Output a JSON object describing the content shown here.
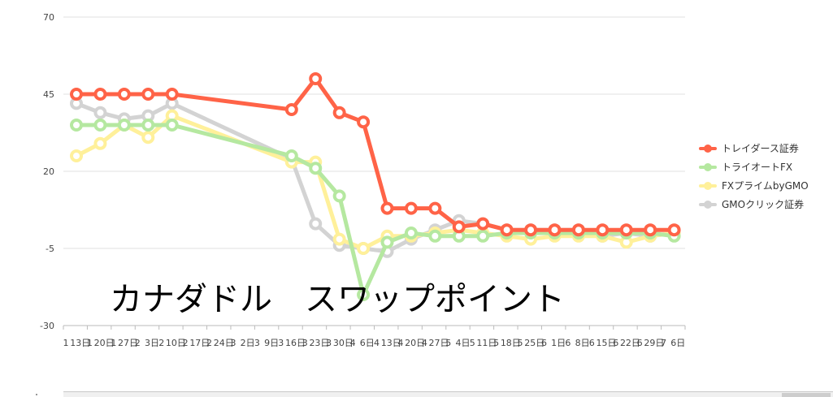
{
  "chart_data": {
    "type": "line",
    "title": "カナダドル　スワップポイント",
    "xlabel": "",
    "ylabel": "",
    "ylim": [
      -30,
      70
    ],
    "yticks": [
      70,
      45,
      20,
      -5,
      -30
    ],
    "grid": true,
    "legend_position": "right",
    "x": [
      "1月13日",
      "1月20日",
      "1月27日",
      "2月3日",
      "2月10日",
      "2月17日",
      "2月24日",
      "3月2日",
      "3月9日",
      "3月16日",
      "3月23日",
      "3月30日",
      "4月6日",
      "4月13日",
      "4月20日",
      "4月27日",
      "5月4日",
      "5月11日",
      "5月18日",
      "5月25日",
      "6月1日",
      "6月8日",
      "6月15日",
      "6月22日",
      "6月29日",
      "7月6日"
    ],
    "x_tick_labels": [
      "1",
      "13日",
      "1",
      "20日",
      "1",
      "27日",
      "2",
      "3日",
      "2",
      "10日",
      "2",
      "17日",
      "2",
      "24日",
      "3",
      "2日",
      "3",
      "9日",
      "3",
      "16日",
      "3",
      "23日",
      "3",
      "30日",
      "4",
      "6日",
      "4",
      "13日",
      "4",
      "20日",
      "4",
      "27日",
      "5",
      "4日",
      "5",
      "11日",
      "5",
      "18日",
      "5",
      "25日",
      "6",
      "1日",
      "6",
      "8日",
      "6",
      "15日",
      "6",
      "22日",
      "6",
      "29日",
      "7",
      "6日"
    ],
    "series": [
      {
        "name": "トレイダース証券",
        "color": "#ff6347",
        "values": [
          45,
          45,
          45,
          45,
          45,
          null,
          null,
          null,
          null,
          40,
          50,
          39,
          36,
          8,
          8,
          8,
          2,
          3,
          1,
          1,
          1,
          1,
          1,
          1,
          1,
          1
        ]
      },
      {
        "name": "トライオートFX",
        "color": "#b5e8a0",
        "values": [
          35,
          35,
          35,
          35,
          35,
          null,
          null,
          null,
          null,
          25,
          21,
          12,
          -20,
          -3,
          0,
          -1,
          -1,
          -1,
          0,
          0,
          0,
          0,
          0,
          0,
          0,
          -1
        ]
      },
      {
        "name": "FXプライムbyGMO",
        "color": "#fff09a",
        "values": [
          25,
          29,
          35,
          31,
          38,
          null,
          null,
          null,
          null,
          23,
          23,
          -2,
          -5,
          -1,
          -1,
          0,
          1,
          0,
          -1,
          -2,
          -1,
          -1,
          -1,
          -3,
          -1,
          0
        ]
      },
      {
        "name": "GMOクリック証券",
        "color": "#d3d3d3",
        "values": [
          42,
          39,
          37,
          38,
          42,
          null,
          null,
          null,
          null,
          24,
          3,
          -4,
          -5,
          -6,
          -2,
          1,
          4,
          3,
          1,
          1,
          1,
          1,
          -1,
          0,
          -1,
          0
        ]
      }
    ]
  }
}
